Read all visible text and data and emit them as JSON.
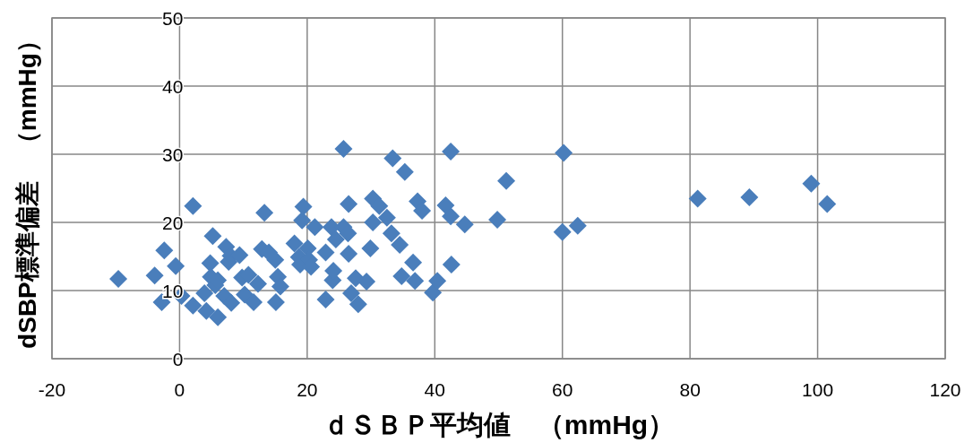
{
  "chart_data": {
    "type": "scatter",
    "xlabel": "ｄＳＢＰ平均値　（mmHg）",
    "ylabel": "dSBP標準偏差　（mmHg）",
    "xlim": [
      -20,
      120
    ],
    "ylim": [
      0,
      50
    ],
    "xticks": [
      -20,
      0,
      20,
      40,
      60,
      80,
      100,
      120
    ],
    "yticks": [
      0,
      10,
      20,
      30,
      40,
      50
    ],
    "grid": true,
    "marker": "diamond",
    "series": [
      {
        "color": "#4a7ebb",
        "x": [
          -9.6,
          -3.9,
          -2.8,
          -2.4,
          -0.6,
          0.3,
          2.1,
          2.1,
          3.9,
          4.2,
          4.8,
          4.9,
          5.2,
          5.6,
          6.0,
          6.0,
          7.0,
          7.3,
          7.7,
          8.0,
          8.1,
          9.4,
          9.8,
          10.2,
          10.8,
          11.6,
          12.3,
          13.3,
          12.9,
          14.0,
          15.0,
          15.4,
          15.8,
          15.1,
          18.0,
          18.7,
          18.9,
          19.4,
          19.2,
          20.1,
          20.3,
          20.6,
          21.2,
          22.9,
          22.9,
          23.8,
          24.0,
          24.1,
          24.5,
          25.7,
          25.7,
          26.4,
          26.5,
          26.5,
          26.9,
          27.6,
          28.0,
          29.3,
          29.9,
          30.3,
          30.3,
          31.3,
          32.5,
          33.2,
          33.4,
          34.5,
          34.8,
          35.3,
          36.6,
          36.9,
          37.3,
          38.0,
          39.7,
          40.4,
          41.7,
          42.5,
          42.5,
          42.6,
          44.7,
          49.8,
          51.2,
          60.2,
          60.0,
          62.4,
          81.2,
          89.3,
          99.0,
          101.5
        ],
        "values": [
          11.7,
          12.2,
          8.3,
          15.9,
          13.6,
          9.2,
          22.4,
          7.8,
          9.6,
          7.0,
          14.0,
          12.0,
          18.0,
          10.8,
          11.5,
          6.1,
          9.2,
          16.4,
          14.2,
          15.1,
          8.2,
          15.2,
          11.9,
          9.4,
          12.3,
          8.3,
          11.0,
          21.4,
          16.1,
          15.6,
          14.5,
          12.0,
          10.6,
          8.3,
          16.9,
          14.9,
          13.8,
          22.3,
          20.3,
          16.2,
          14.5,
          13.5,
          19.3,
          15.6,
          8.7,
          19.3,
          11.5,
          12.9,
          17.5,
          30.8,
          19.3,
          18.4,
          22.7,
          15.4,
          9.6,
          11.8,
          8.0,
          11.3,
          16.2,
          23.5,
          20.0,
          22.4,
          20.7,
          18.4,
          29.4,
          16.7,
          12.1,
          27.4,
          14.1,
          11.4,
          23.1,
          21.7,
          9.7,
          11.4,
          22.5,
          30.4,
          20.9,
          13.8,
          19.7,
          20.4,
          26.1,
          30.2,
          18.6,
          19.5,
          23.5,
          23.7,
          25.7,
          22.7
        ]
      }
    ]
  }
}
